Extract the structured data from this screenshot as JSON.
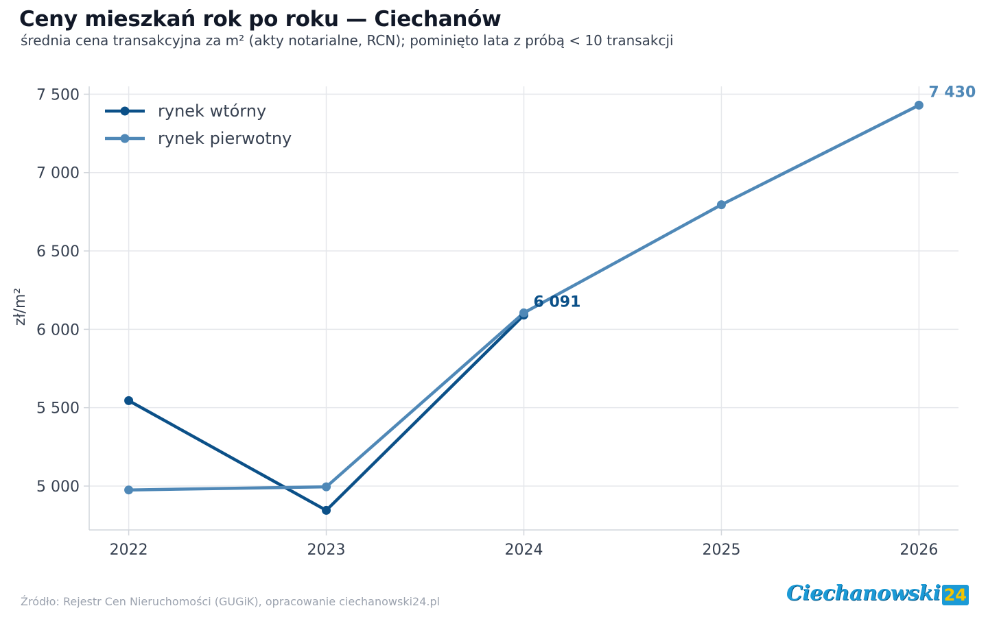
{
  "header": {
    "title": "Ceny mieszkań rok po roku — Ciechanów",
    "subtitle": "średnia cena transakcyjna za m² (akty notarialne, RCN); pominięto lata z próbą < 10 transakcji"
  },
  "footer": {
    "source": "Źródło: Rejestr Cen Nieruchomości (GUGiK), opracowanie ciechanowski24.pl",
    "logo_word": "Ciechanowski",
    "logo_number": "24"
  },
  "chart_data": {
    "type": "line",
    "title": "Ceny mieszkań rok po roku — Ciechanów",
    "subtitle": "średnia cena transakcyjna za m² (akty notarialne, RCN); pominięto lata z próbą < 10 transakcji",
    "xlabel": "",
    "ylabel": "zł/m²",
    "x": [
      2022,
      2023,
      2024,
      2025,
      2026
    ],
    "x_tick_labels": [
      "2022",
      "2023",
      "2024",
      "2025",
      "2026"
    ],
    "y_ticks": [
      5000,
      5500,
      6000,
      6500,
      7000,
      7500
    ],
    "y_tick_labels": [
      "5 000",
      "5 500",
      "6 000",
      "6 500",
      "7 000",
      "7 500"
    ],
    "xlim": [
      2021.8,
      2026.2
    ],
    "ylim": [
      4720,
      7550
    ],
    "grid": true,
    "legend_position": "top-left",
    "series": [
      {
        "name": "rynek wtórny",
        "color": "#0b5088",
        "x": [
          2022,
          2023,
          2024
        ],
        "values": [
          5545,
          4845,
          6091
        ],
        "end_label": "6 091"
      },
      {
        "name": "rynek pierwotny",
        "color": "#4f88b7",
        "x": [
          2022,
          2023,
          2024,
          2025,
          2026
        ],
        "values": [
          4975,
          4995,
          6105,
          6795,
          7430
        ],
        "end_label": "7 430"
      }
    ]
  }
}
